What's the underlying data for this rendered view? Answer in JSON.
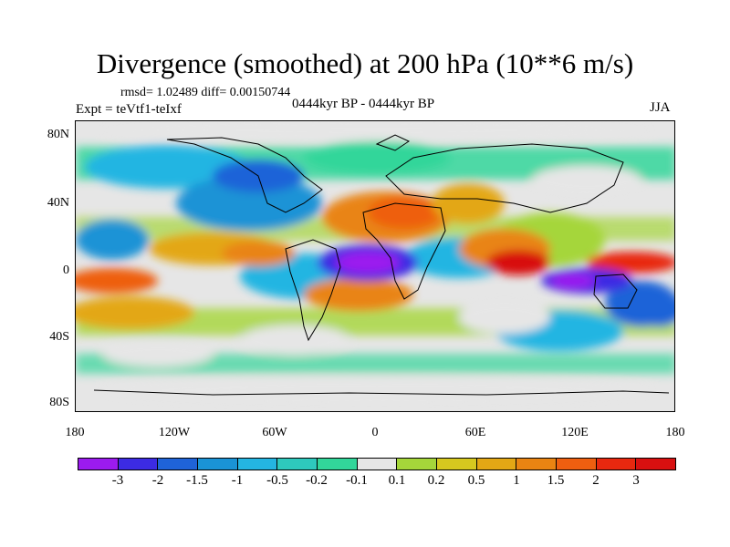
{
  "title": "Divergence (smoothed) at 200 hPa (10**6 m/s)",
  "stats": "rmsd= 1.02489 diff= 0.00150744",
  "experiment": "Expt = teVtf1-teIxf",
  "period": "0444kyr BP - 0444kyr BP",
  "season": "JJA",
  "y_ticks": [
    "80N",
    "40N",
    "0",
    "40S",
    "80S"
  ],
  "x_ticks": [
    "180",
    "120W",
    "60W",
    "0",
    "60E",
    "120E",
    "180"
  ],
  "colorbar": {
    "labels": [
      "-3",
      "-2",
      "-1.5",
      "-1",
      "-0.5",
      "-0.2",
      "-0.1",
      "0.1",
      "0.2",
      "0.5",
      "1",
      "1.5",
      "2",
      "3"
    ],
    "colors": [
      "#9b1bef",
      "#3c2be3",
      "#1f63d8",
      "#1a93d6",
      "#24b5e2",
      "#2ec9bd",
      "#32d69a",
      "#e6e6e6",
      "#a5d63a",
      "#d6c81f",
      "#e3a715",
      "#e98412",
      "#ee5f10",
      "#e8280f",
      "#d81010"
    ]
  },
  "regions": [
    {
      "lon": -20,
      "lat": 0,
      "level": "-3"
    },
    {
      "lon": 135,
      "lat": -3,
      "level": "-3"
    },
    {
      "lon": 75,
      "lat": 0,
      "level": "3"
    },
    {
      "lon": -10,
      "lat": 20,
      "level": "2"
    },
    {
      "lon": 165,
      "lat": -5,
      "level": "3"
    }
  ]
}
